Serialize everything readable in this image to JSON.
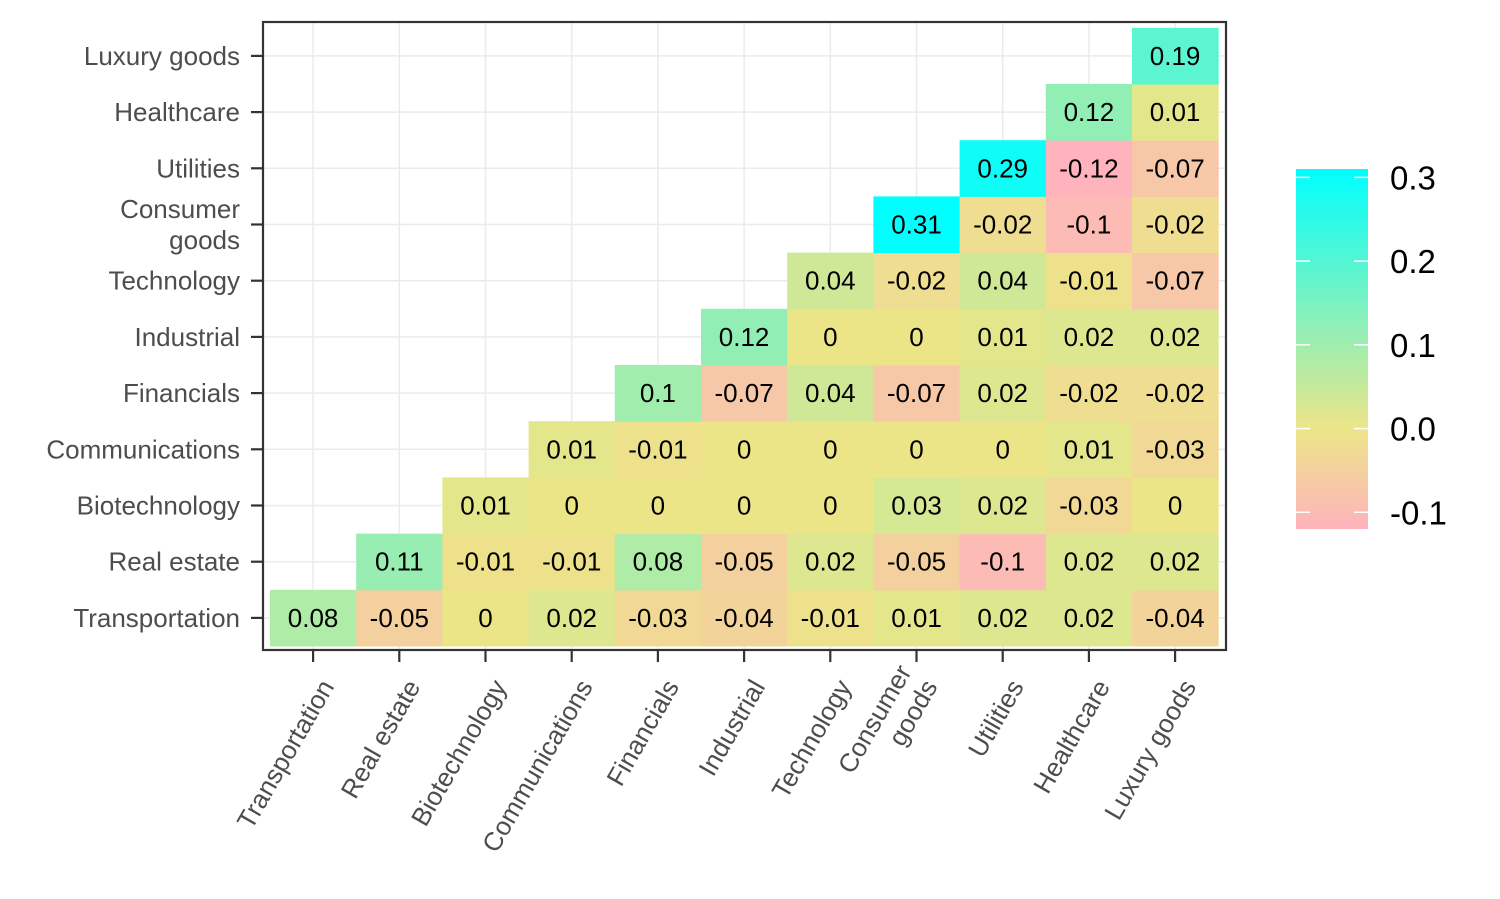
{
  "chart_data": {
    "type": "heatmap",
    "title": "",
    "xlabel": "",
    "ylabel": "",
    "categories": [
      "Transportation",
      "Real estate",
      "Biotechnology",
      "Communications",
      "Financials",
      "Industrial",
      "Technology",
      "Consumer goods",
      "Utilities",
      "Healthcare",
      "Luxury goods"
    ],
    "x_tick_labels": [
      "Transportation",
      "Real estate",
      "Biotechnology",
      "Communications",
      "Financials",
      "Industrial",
      "Technology",
      "Consumer\ngoods",
      "Utilities",
      "Healthcare",
      "Luxury goods"
    ],
    "y_tick_labels": [
      "Transportation",
      "Real estate",
      "Biotechnology",
      "Communications",
      "Financials",
      "Industrial",
      "Technology",
      "Consumer\ngoods",
      "Utilities",
      "Healthcare",
      "Luxury goods"
    ],
    "matrix": [
      [
        0.08,
        -0.05,
        0,
        0.02,
        -0.03,
        -0.04,
        -0.01,
        0.01,
        0.02,
        0.02,
        -0.04
      ],
      [
        null,
        0.11,
        -0.01,
        -0.01,
        0.08,
        -0.05,
        0.02,
        -0.05,
        -0.1,
        0.02,
        0.02
      ],
      [
        null,
        null,
        0.01,
        0,
        0,
        0,
        0,
        0.03,
        0.02,
        -0.03,
        0
      ],
      [
        null,
        null,
        null,
        0.01,
        -0.01,
        0,
        0,
        0,
        0,
        0.01,
        -0.03
      ],
      [
        null,
        null,
        null,
        null,
        0.1,
        -0.07,
        0.04,
        -0.07,
        0.02,
        -0.02,
        -0.02
      ],
      [
        null,
        null,
        null,
        null,
        null,
        0.12,
        0,
        0,
        0.01,
        0.02,
        0.02
      ],
      [
        null,
        null,
        null,
        null,
        null,
        null,
        0.04,
        -0.02,
        0.04,
        -0.01,
        -0.07
      ],
      [
        null,
        null,
        null,
        null,
        null,
        null,
        null,
        0.31,
        -0.02,
        -0.1,
        -0.02
      ],
      [
        null,
        null,
        null,
        null,
        null,
        null,
        null,
        null,
        0.29,
        -0.12,
        -0.07
      ],
      [
        null,
        null,
        null,
        null,
        null,
        null,
        null,
        null,
        null,
        0.12,
        0.01
      ],
      [
        null,
        null,
        null,
        null,
        null,
        null,
        null,
        null,
        null,
        null,
        0.19
      ]
    ],
    "color_scale": {
      "stops": [
        {
          "value": -0.12,
          "color": "#ffb3bd"
        },
        {
          "value": 0.0,
          "color": "#ece588"
        },
        {
          "value": 0.31,
          "color": "#00ffff"
        }
      ],
      "ticks": [
        "0.3",
        "0.2",
        "0.1",
        "0.0",
        "-0.1"
      ],
      "tick_values": [
        0.3,
        0.2,
        0.1,
        0.0,
        -0.1
      ],
      "placement": "right"
    },
    "grid": true
  }
}
